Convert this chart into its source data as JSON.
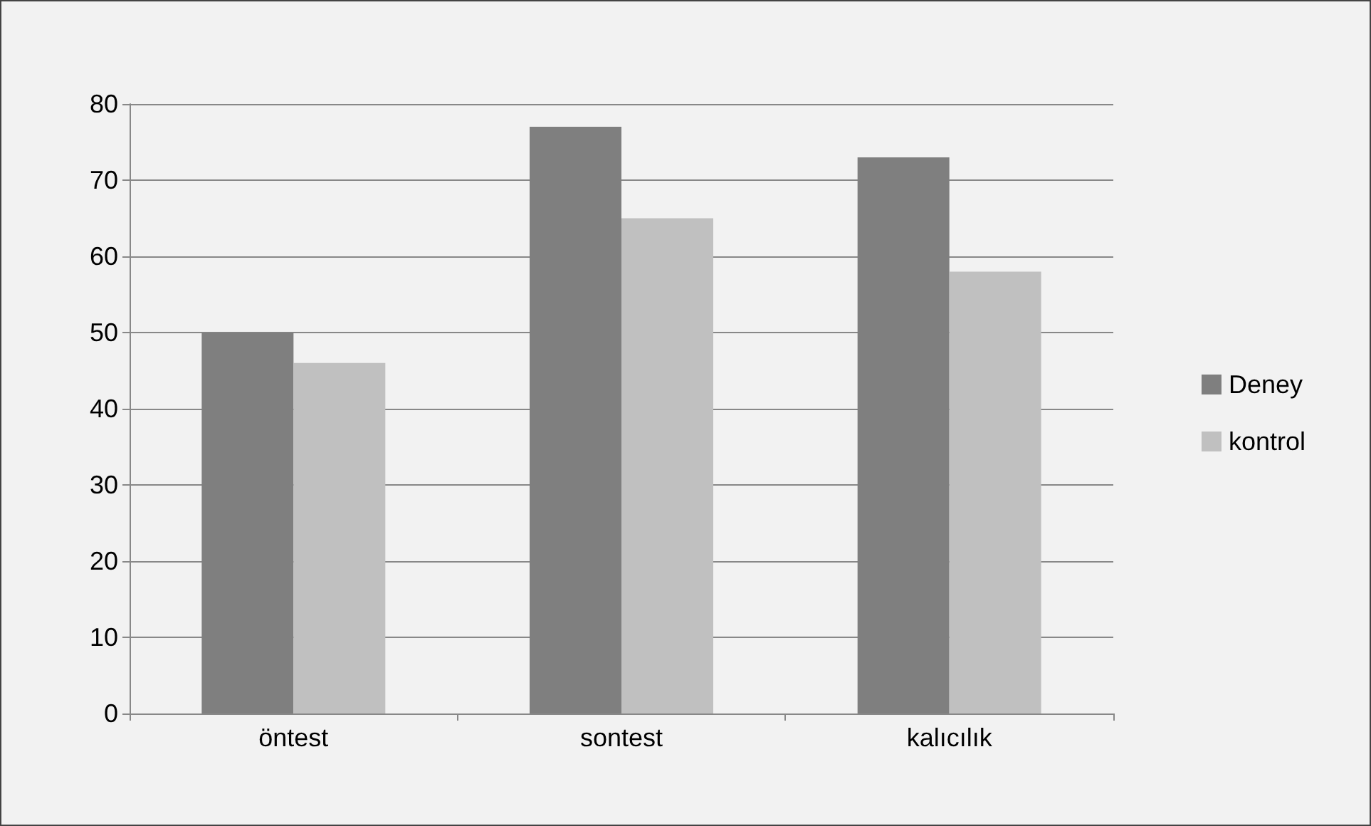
{
  "chart_data": {
    "type": "bar",
    "categories": [
      "öntest",
      "sontest",
      "kalıcılık"
    ],
    "series": [
      {
        "name": "Deney",
        "color": "#7f7f7f",
        "values": [
          50,
          77,
          73
        ]
      },
      {
        "name": "kontrol",
        "color": "#c0c0c0",
        "values": [
          46,
          65,
          58
        ]
      }
    ],
    "ylim": [
      0,
      80
    ],
    "yticks": [
      0,
      10,
      20,
      30,
      40,
      50,
      60,
      70,
      80
    ],
    "grid": "y",
    "legend": "right"
  }
}
